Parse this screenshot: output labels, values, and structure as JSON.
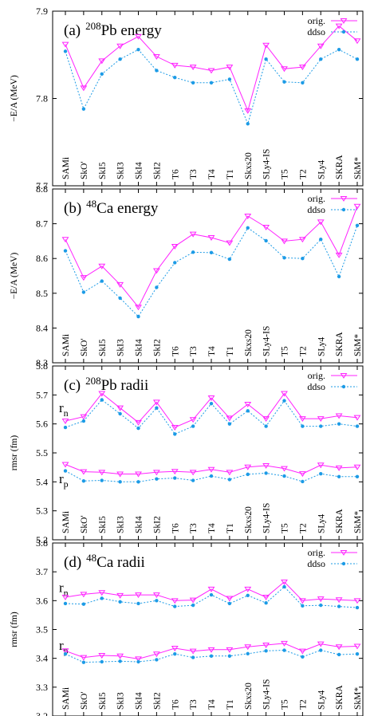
{
  "chart_data": [
    {
      "type": "line",
      "title_prefix": "(a)",
      "title_mass": "208",
      "title_rest": "Pb energy",
      "ylabel": "−E/A  (MeV)",
      "ylim": [
        7.7,
        7.9
      ],
      "yticks": [
        "7.7",
        "7.8",
        "7.9"
      ],
      "categories": [
        "SAMi",
        "SkO'",
        "SkI5",
        "SkI3",
        "SkI4",
        "SkI2",
        "T6",
        "T3",
        "T4",
        "T1",
        "Skxs20",
        "SLy4-IS",
        "T5",
        "T2",
        "SLy4",
        "SKRA",
        "SkM*"
      ],
      "series": [
        {
          "name": "orig.",
          "color": "#ff22ff",
          "marker": "triangle-down",
          "dash": false,
          "values": [
            7.862,
            7.812,
            7.843,
            7.86,
            7.871,
            7.848,
            7.838,
            7.836,
            7.832,
            7.836,
            7.786,
            7.861,
            7.834,
            7.836,
            7.86,
            7.883,
            7.866
          ]
        },
        {
          "name": "ddso",
          "color": "#1c9be6",
          "marker": "circle",
          "dash": true,
          "values": [
            7.854,
            7.788,
            7.828,
            7.845,
            7.856,
            7.832,
            7.824,
            7.818,
            7.818,
            7.822,
            7.771,
            7.845,
            7.819,
            7.818,
            7.845,
            7.856,
            7.845
          ]
        }
      ]
    },
    {
      "type": "line",
      "title_prefix": "(b)",
      "title_mass": "48",
      "title_rest": "Ca energy",
      "ylabel": "−E/A  (MeV)",
      "ylim": [
        8.3,
        8.8
      ],
      "yticks": [
        "8.3",
        "8.4",
        "8.5",
        "8.6",
        "8.7",
        "8.8"
      ],
      "categories": [
        "SAMi",
        "SkO'",
        "SkI5",
        "SkI3",
        "SkI4",
        "SkI2",
        "T6",
        "T3",
        "T4",
        "T1",
        "Skxs20",
        "SLy4-IS",
        "T5",
        "T2",
        "SLy4",
        "SKRA",
        "SkM*"
      ],
      "series": [
        {
          "name": "orig.",
          "color": "#ff22ff",
          "marker": "triangle-down",
          "dash": false,
          "values": [
            8.655,
            8.545,
            8.578,
            8.525,
            8.46,
            8.565,
            8.635,
            8.67,
            8.66,
            8.645,
            8.722,
            8.69,
            8.65,
            8.655,
            8.705,
            8.61,
            8.75
          ]
        },
        {
          "name": "ddso",
          "color": "#1c9be6",
          "marker": "circle",
          "dash": true,
          "values": [
            8.622,
            8.503,
            8.535,
            8.486,
            8.433,
            8.517,
            8.588,
            8.618,
            8.617,
            8.598,
            8.688,
            8.651,
            8.602,
            8.6,
            8.655,
            8.548,
            8.695
          ]
        }
      ]
    },
    {
      "type": "line",
      "title_prefix": "(c)",
      "title_mass": "208",
      "title_rest": "Pb radii",
      "ylabel": "rmsr (fm)",
      "ylim": [
        5.2,
        5.8
      ],
      "yticks": [
        "5.2",
        "5.3",
        "5.4",
        "5.5",
        "5.6",
        "5.7",
        "5.8"
      ],
      "rn_label": "r",
      "rn_sub": "n",
      "rp_label": "r",
      "rp_sub": "p",
      "rn_pos": [
        0.0,
        5.64
      ],
      "rp_pos": [
        0.0,
        5.395
      ],
      "categories": [
        "SAMi",
        "SkO'",
        "SkI5",
        "SkI3",
        "SkI4",
        "SkI2",
        "T6",
        "T3",
        "T4",
        "T1",
        "Skxs20",
        "SLy4-IS",
        "T5",
        "T2",
        "SLy4",
        "SKRA",
        "SkM*"
      ],
      "series": [
        {
          "name": "orig.",
          "color": "#ff22ff",
          "marker": "triangle-down",
          "dash": false,
          "values": [
            5.61,
            5.625,
            5.705,
            5.655,
            5.605,
            5.675,
            5.588,
            5.615,
            5.69,
            5.62,
            5.668,
            5.618,
            5.705,
            5.618,
            5.618,
            5.628,
            5.622
          ]
        },
        {
          "name": "ddso",
          "color": "#1c9be6",
          "marker": "circle",
          "dash": true,
          "values": [
            5.588,
            5.61,
            5.683,
            5.635,
            5.585,
            5.655,
            5.565,
            5.592,
            5.67,
            5.6,
            5.645,
            5.592,
            5.68,
            5.592,
            5.592,
            5.6,
            5.592
          ]
        },
        {
          "name": "",
          "color": "#ff22ff",
          "marker": "triangle-down",
          "dash": false,
          "values": [
            5.46,
            5.435,
            5.433,
            5.427,
            5.427,
            5.433,
            5.436,
            5.433,
            5.443,
            5.433,
            5.451,
            5.456,
            5.446,
            5.428,
            5.458,
            5.448,
            5.451
          ]
        },
        {
          "name": "",
          "color": "#1c9be6",
          "marker": "circle",
          "dash": true,
          "values": [
            5.438,
            5.403,
            5.405,
            5.4,
            5.4,
            5.41,
            5.413,
            5.405,
            5.42,
            5.408,
            5.426,
            5.43,
            5.42,
            5.401,
            5.428,
            5.418,
            5.418
          ]
        }
      ]
    },
    {
      "type": "line",
      "title_prefix": "(d)",
      "title_mass": "48",
      "title_rest": "Ca radii",
      "ylabel": "rmsr (fm)",
      "ylim": [
        3.2,
        3.8
      ],
      "yticks": [
        "3.2",
        "3.3",
        "3.4",
        "3.5",
        "3.6",
        "3.7",
        "3.8"
      ],
      "rn_label": "r",
      "rn_sub": "n",
      "rp_label": "r",
      "rp_sub": "p",
      "rn_pos": [
        0.0,
        3.63
      ],
      "rp_pos": [
        0.0,
        3.43
      ],
      "categories": [
        "SAMi",
        "SkO'",
        "SkI5",
        "SkI3",
        "SkI4",
        "SkI2",
        "T6",
        "T3",
        "T4",
        "T1",
        "Skxs20",
        "SLy4-IS",
        "T5",
        "T2",
        "SLy4",
        "SKRA",
        "SkM*"
      ],
      "series": [
        {
          "name": "orig.",
          "color": "#ff22ff",
          "marker": "triangle-down",
          "dash": false,
          "values": [
            3.612,
            3.622,
            3.628,
            3.618,
            3.62,
            3.62,
            3.6,
            3.602,
            3.64,
            3.608,
            3.64,
            3.612,
            3.665,
            3.6,
            3.606,
            3.603,
            3.6
          ]
        },
        {
          "name": "ddso",
          "color": "#1c9be6",
          "marker": "circle",
          "dash": true,
          "values": [
            3.59,
            3.588,
            3.608,
            3.596,
            3.59,
            3.6,
            3.58,
            3.584,
            3.62,
            3.59,
            3.618,
            3.592,
            3.648,
            3.582,
            3.584,
            3.58,
            3.576
          ]
        },
        {
          "name": "",
          "color": "#ff22ff",
          "marker": "triangle-down",
          "dash": false,
          "values": [
            3.426,
            3.403,
            3.41,
            3.408,
            3.398,
            3.415,
            3.435,
            3.425,
            3.43,
            3.43,
            3.44,
            3.446,
            3.452,
            3.425,
            3.45,
            3.44,
            3.442
          ]
        },
        {
          "name": "",
          "color": "#1c9be6",
          "marker": "circle",
          "dash": true,
          "values": [
            3.415,
            3.386,
            3.388,
            3.39,
            3.388,
            3.395,
            3.415,
            3.403,
            3.408,
            3.408,
            3.416,
            3.426,
            3.428,
            3.405,
            3.428,
            3.413,
            3.415
          ]
        }
      ]
    }
  ]
}
